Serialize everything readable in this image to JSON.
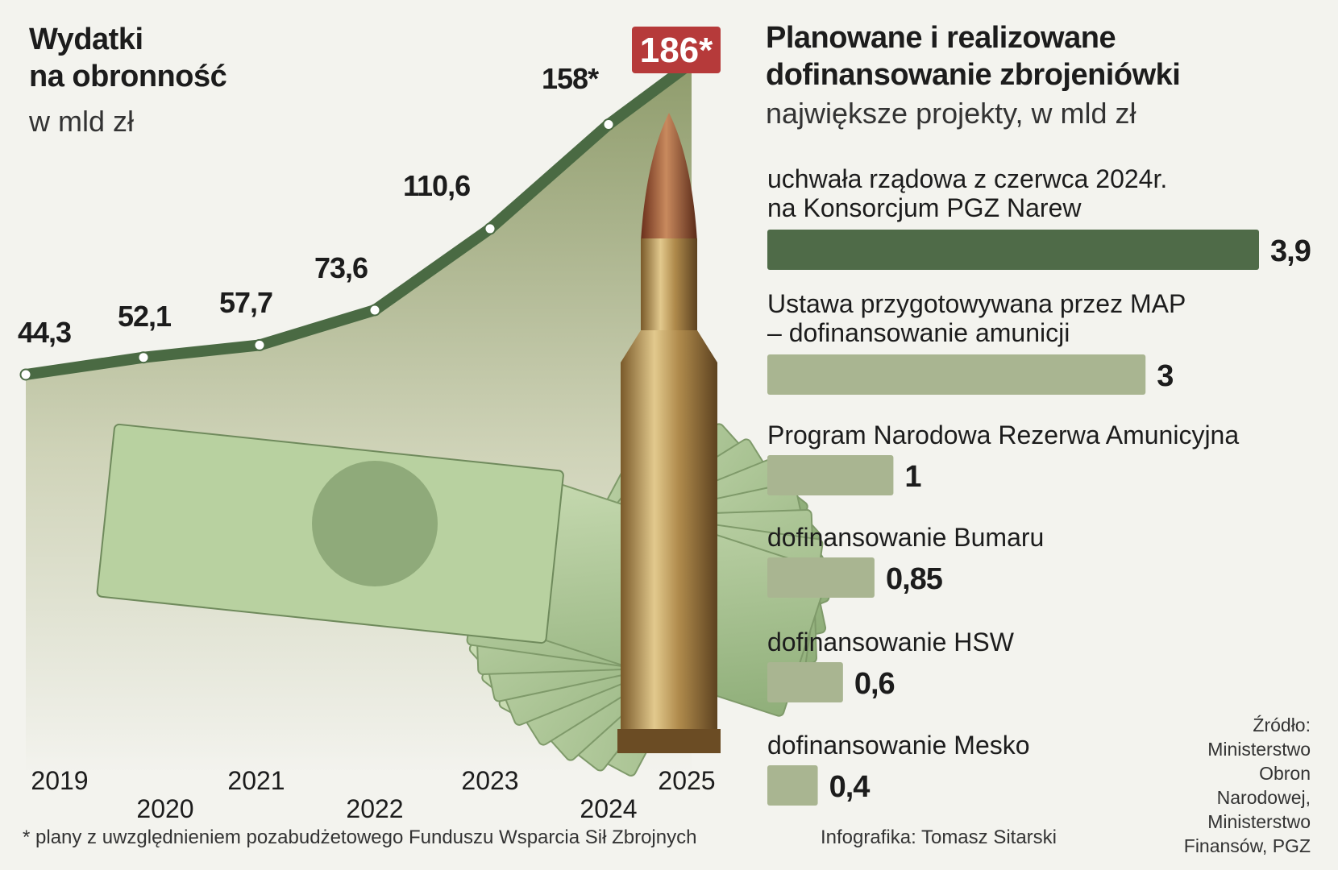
{
  "left": {
    "title_line1": "Wydatki",
    "title_line2": "na obronność",
    "subtitle": "w mld zł"
  },
  "right": {
    "title_line1": "Planowane i realizowane",
    "title_line2": "dofinansowanie zbrojeniówki",
    "subtitle": "największe projekty, w mld zł"
  },
  "footnote": "* plany z uwzględnieniem pozabudżetowego Funduszu Wsparcia Sił Zbrojnych",
  "credit": "Infografika: Tomasz Sitarski",
  "source": {
    "line1": "Źródło:",
    "line2": "Ministerstwo",
    "line3": "Obron",
    "line4": "Narodowej,",
    "line5": "Ministerstwo",
    "line6": "Finansów, PGZ"
  },
  "colors": {
    "line": "#4a6a43",
    "dark_bar": "#4f6b48",
    "light_bar": "#a9b591",
    "highlight": "#b63a3a",
    "area_top": "#8f9c6c",
    "area_bottom": "#f3f3ee"
  },
  "chart_data": [
    {
      "type": "line",
      "x": [
        "2019",
        "2020",
        "2021",
        "2022",
        "2023",
        "2024",
        "2025"
      ],
      "values": [
        44.3,
        52.1,
        57.7,
        73.6,
        110.6,
        158,
        186
      ],
      "labels": [
        "44,3",
        "52,1",
        "57,7",
        "73,6",
        "110,6",
        "158*",
        "186*"
      ],
      "highlighted": "186*",
      "illustrations": [
        "banknotes-100-zloty",
        "rifle-cartridge"
      ]
    },
    {
      "type": "bar",
      "orientation": "horizontal",
      "categories": [
        [
          "uchwała rządowa z czerwca 2024r.",
          "na Konsorcjum PGZ Narew"
        ],
        [
          "Ustawa przygotowywana przez MAP",
          "– dofinansowanie amunicji"
        ],
        [
          "Program Narodowa Rezerwa Amunicyjna"
        ],
        [
          "dofinansowanie Bumaru"
        ],
        [
          "dofinansowanie HSW"
        ],
        [
          "dofinansowanie Mesko"
        ]
      ],
      "values": [
        3.9,
        3,
        1,
        0.85,
        0.6,
        0.4
      ],
      "labels": [
        "3,9",
        "3",
        "1",
        "0,85",
        "0,6",
        "0,4"
      ],
      "highlighted_index": 0
    }
  ]
}
